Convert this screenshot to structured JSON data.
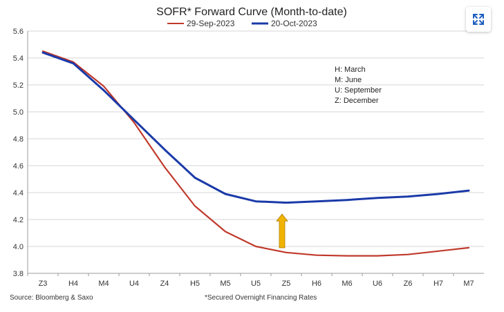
{
  "chart_data": {
    "type": "line",
    "title": "SOFR* Forward Curve (Month-to-date)",
    "categories": [
      "Z3",
      "H4",
      "M4",
      "U4",
      "Z4",
      "H5",
      "M5",
      "U5",
      "Z5",
      "H6",
      "M6",
      "U6",
      "Z6",
      "H7",
      "M7"
    ],
    "series": [
      {
        "name": "29-Sep-2023",
        "color": "#c0392b",
        "values": [
          5.45,
          5.37,
          5.19,
          4.92,
          4.59,
          4.3,
          4.11,
          4.0,
          3.955,
          3.935,
          3.93,
          3.93,
          3.94,
          3.965,
          3.99
        ]
      },
      {
        "name": "20-Oct-2023",
        "color": "#1a3aa8",
        "values": [
          5.44,
          5.36,
          5.16,
          4.94,
          4.72,
          4.51,
          4.39,
          4.335,
          4.325,
          4.335,
          4.345,
          4.36,
          4.37,
          4.39,
          4.415
        ]
      }
    ],
    "ylim": [
      3.8,
      5.6
    ],
    "yticks": [
      "3.8",
      "4.0",
      "4.2",
      "4.4",
      "4.6",
      "4.8",
      "5.0",
      "5.2",
      "5.4",
      "5.6"
    ],
    "grid": true,
    "legend": "top",
    "annotations": {
      "notes": [
        "H: March",
        "M: June",
        "U: September",
        "Z: December"
      ],
      "arrow": {
        "category": "Z5",
        "from": 3.99,
        "to": 4.24,
        "color": "#f0b400",
        "direction": "up"
      }
    }
  },
  "footer": {
    "source": "Source: Bloomberg & Saxo",
    "footnote": "*Secured Overnight Financing Rates"
  },
  "controls": {
    "expand_icon": "expand-icon",
    "accent_color": "#1f5fbf"
  }
}
